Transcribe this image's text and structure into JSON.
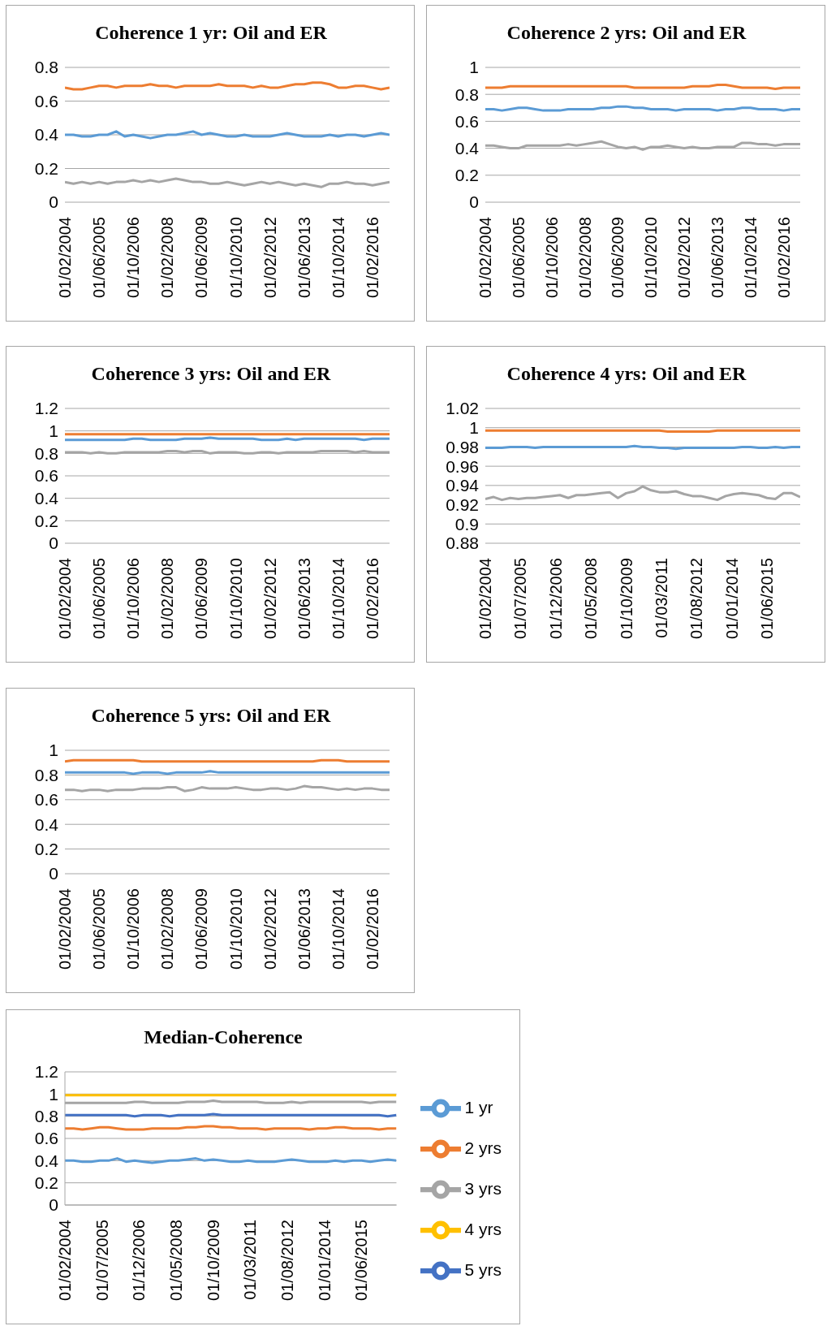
{
  "chart_data": [
    {
      "type": "line",
      "title": "Coherence 1 yr: Oil and ER",
      "grid": "y",
      "ylim": [
        0,
        0.8
      ],
      "yticks": [
        0,
        0.2,
        0.4,
        0.6,
        0.8
      ],
      "xlim": [
        "2004-02",
        "2016-10"
      ],
      "xticks": [
        {
          "value": "2004-02",
          "label": "01/02/2004"
        },
        {
          "value": "2005-06",
          "label": "01/06/2005"
        },
        {
          "value": "2006-10",
          "label": "01/10/2006"
        },
        {
          "value": "2008-02",
          "label": "01/02/2008"
        },
        {
          "value": "2009-06",
          "label": "01/06/2009"
        },
        {
          "value": "2010-10",
          "label": "01/10/2010"
        },
        {
          "value": "2012-02",
          "label": "01/02/2012"
        },
        {
          "value": "2013-06",
          "label": "01/06/2013"
        },
        {
          "value": "2014-10",
          "label": "01/10/2014"
        },
        {
          "value": "2016-02",
          "label": "01/02/2016"
        }
      ],
      "x": [
        "2004-02",
        "2004-06",
        "2004-10",
        "2005-02",
        "2005-06",
        "2005-10",
        "2006-02",
        "2006-06",
        "2006-10",
        "2007-02",
        "2007-06",
        "2007-10",
        "2008-02",
        "2008-06",
        "2008-10",
        "2009-02",
        "2009-06",
        "2009-10",
        "2010-02",
        "2010-06",
        "2010-10",
        "2011-02",
        "2011-06",
        "2011-10",
        "2012-02",
        "2012-06",
        "2012-10",
        "2013-02",
        "2013-06",
        "2013-10",
        "2014-02",
        "2014-06",
        "2014-10",
        "2015-02",
        "2015-06",
        "2015-10",
        "2016-02",
        "2016-06",
        "2016-10"
      ],
      "series": [
        {
          "color": "#5b9bd5",
          "values": [
            0.4,
            0.4,
            0.39,
            0.39,
            0.4,
            0.4,
            0.42,
            0.39,
            0.4,
            0.39,
            0.38,
            0.39,
            0.4,
            0.4,
            0.41,
            0.42,
            0.4,
            0.41,
            0.4,
            0.39,
            0.39,
            0.4,
            0.39,
            0.39,
            0.39,
            0.4,
            0.41,
            0.4,
            0.39,
            0.39,
            0.39,
            0.4,
            0.39,
            0.4,
            0.4,
            0.39,
            0.4,
            0.41,
            0.4
          ]
        },
        {
          "color": "#ed7d31",
          "values": [
            0.68,
            0.67,
            0.67,
            0.68,
            0.69,
            0.69,
            0.68,
            0.69,
            0.69,
            0.69,
            0.7,
            0.69,
            0.69,
            0.68,
            0.69,
            0.69,
            0.69,
            0.69,
            0.7,
            0.69,
            0.69,
            0.69,
            0.68,
            0.69,
            0.68,
            0.68,
            0.69,
            0.7,
            0.7,
            0.71,
            0.71,
            0.7,
            0.68,
            0.68,
            0.69,
            0.69,
            0.68,
            0.67,
            0.68
          ]
        },
        {
          "color": "#a5a5a5",
          "values": [
            0.12,
            0.11,
            0.12,
            0.11,
            0.12,
            0.11,
            0.12,
            0.12,
            0.13,
            0.12,
            0.13,
            0.12,
            0.13,
            0.14,
            0.13,
            0.12,
            0.12,
            0.11,
            0.11,
            0.12,
            0.11,
            0.1,
            0.11,
            0.12,
            0.11,
            0.12,
            0.11,
            0.1,
            0.11,
            0.1,
            0.09,
            0.11,
            0.11,
            0.12,
            0.11,
            0.11,
            0.1,
            0.11,
            0.12
          ]
        }
      ]
    },
    {
      "type": "line",
      "title": "Coherence 2 yrs: Oil and ER",
      "grid": "y",
      "ylim": [
        0,
        1
      ],
      "yticks": [
        0,
        0.2,
        0.4,
        0.6,
        0.8,
        1
      ],
      "xlim": [
        "2004-02",
        "2016-10"
      ],
      "xticks": [
        {
          "value": "2004-02",
          "label": "01/02/2004"
        },
        {
          "value": "2005-06",
          "label": "01/06/2005"
        },
        {
          "value": "2006-10",
          "label": "01/10/2006"
        },
        {
          "value": "2008-02",
          "label": "01/02/2008"
        },
        {
          "value": "2009-06",
          "label": "01/06/2009"
        },
        {
          "value": "2010-10",
          "label": "01/10/2010"
        },
        {
          "value": "2012-02",
          "label": "01/02/2012"
        },
        {
          "value": "2013-06",
          "label": "01/06/2013"
        },
        {
          "value": "2014-10",
          "label": "01/10/2014"
        },
        {
          "value": "2016-02",
          "label": "01/02/2016"
        }
      ],
      "x": [
        "2004-02",
        "2004-06",
        "2004-10",
        "2005-02",
        "2005-06",
        "2005-10",
        "2006-02",
        "2006-06",
        "2006-10",
        "2007-02",
        "2007-06",
        "2007-10",
        "2008-02",
        "2008-06",
        "2008-10",
        "2009-02",
        "2009-06",
        "2009-10",
        "2010-02",
        "2010-06",
        "2010-10",
        "2011-02",
        "2011-06",
        "2011-10",
        "2012-02",
        "2012-06",
        "2012-10",
        "2013-02",
        "2013-06",
        "2013-10",
        "2014-02",
        "2014-06",
        "2014-10",
        "2015-02",
        "2015-06",
        "2015-10",
        "2016-02",
        "2016-06",
        "2016-10"
      ],
      "series": [
        {
          "color": "#5b9bd5",
          "values": [
            0.69,
            0.69,
            0.68,
            0.69,
            0.7,
            0.7,
            0.69,
            0.68,
            0.68,
            0.68,
            0.69,
            0.69,
            0.69,
            0.69,
            0.7,
            0.7,
            0.71,
            0.71,
            0.7,
            0.7,
            0.69,
            0.69,
            0.69,
            0.68,
            0.69,
            0.69,
            0.69,
            0.69,
            0.68,
            0.69,
            0.69,
            0.7,
            0.7,
            0.69,
            0.69,
            0.69,
            0.68,
            0.69,
            0.69
          ]
        },
        {
          "color": "#ed7d31",
          "values": [
            0.85,
            0.85,
            0.85,
            0.86,
            0.86,
            0.86,
            0.86,
            0.86,
            0.86,
            0.86,
            0.86,
            0.86,
            0.86,
            0.86,
            0.86,
            0.86,
            0.86,
            0.86,
            0.85,
            0.85,
            0.85,
            0.85,
            0.85,
            0.85,
            0.85,
            0.86,
            0.86,
            0.86,
            0.87,
            0.87,
            0.86,
            0.85,
            0.85,
            0.85,
            0.85,
            0.84,
            0.85,
            0.85,
            0.85
          ]
        },
        {
          "color": "#a5a5a5",
          "values": [
            0.42,
            0.42,
            0.41,
            0.4,
            0.4,
            0.42,
            0.42,
            0.42,
            0.42,
            0.42,
            0.43,
            0.42,
            0.43,
            0.44,
            0.45,
            0.43,
            0.41,
            0.4,
            0.41,
            0.39,
            0.41,
            0.41,
            0.42,
            0.41,
            0.4,
            0.41,
            0.4,
            0.4,
            0.41,
            0.41,
            0.41,
            0.44,
            0.44,
            0.43,
            0.43,
            0.42,
            0.43,
            0.43,
            0.43
          ]
        }
      ]
    },
    {
      "type": "line",
      "title": "Coherence 3 yrs: Oil and ER",
      "grid": "y",
      "ylim": [
        0,
        1.2
      ],
      "yticks": [
        0,
        0.2,
        0.4,
        0.6,
        0.8,
        1,
        1.2
      ],
      "xlim": [
        "2004-02",
        "2016-10"
      ],
      "xticks": [
        {
          "value": "2004-02",
          "label": "01/02/2004"
        },
        {
          "value": "2005-06",
          "label": "01/06/2005"
        },
        {
          "value": "2006-10",
          "label": "01/10/2006"
        },
        {
          "value": "2008-02",
          "label": "01/02/2008"
        },
        {
          "value": "2009-06",
          "label": "01/06/2009"
        },
        {
          "value": "2010-10",
          "label": "01/10/2010"
        },
        {
          "value": "2012-02",
          "label": "01/02/2012"
        },
        {
          "value": "2013-06",
          "label": "01/06/2013"
        },
        {
          "value": "2014-10",
          "label": "01/10/2014"
        },
        {
          "value": "2016-02",
          "label": "01/02/2016"
        }
      ],
      "x": [
        "2004-02",
        "2004-06",
        "2004-10",
        "2005-02",
        "2005-06",
        "2005-10",
        "2006-02",
        "2006-06",
        "2006-10",
        "2007-02",
        "2007-06",
        "2007-10",
        "2008-02",
        "2008-06",
        "2008-10",
        "2009-02",
        "2009-06",
        "2009-10",
        "2010-02",
        "2010-06",
        "2010-10",
        "2011-02",
        "2011-06",
        "2011-10",
        "2012-02",
        "2012-06",
        "2012-10",
        "2013-02",
        "2013-06",
        "2013-10",
        "2014-02",
        "2014-06",
        "2014-10",
        "2015-02",
        "2015-06",
        "2015-10",
        "2016-02",
        "2016-06",
        "2016-10"
      ],
      "series": [
        {
          "color": "#5b9bd5",
          "values": [
            0.92,
            0.92,
            0.92,
            0.92,
            0.92,
            0.92,
            0.92,
            0.92,
            0.93,
            0.93,
            0.92,
            0.92,
            0.92,
            0.92,
            0.93,
            0.93,
            0.93,
            0.94,
            0.93,
            0.93,
            0.93,
            0.93,
            0.93,
            0.92,
            0.92,
            0.92,
            0.93,
            0.92,
            0.93,
            0.93,
            0.93,
            0.93,
            0.93,
            0.93,
            0.93,
            0.92,
            0.93,
            0.93,
            0.93
          ]
        },
        {
          "color": "#ed7d31",
          "values": [
            0.97,
            0.97,
            0.97,
            0.97,
            0.97,
            0.97,
            0.97,
            0.97,
            0.97,
            0.97,
            0.97,
            0.97,
            0.97,
            0.97,
            0.97,
            0.97,
            0.97,
            0.97,
            0.97,
            0.97,
            0.97,
            0.97,
            0.97,
            0.97,
            0.97,
            0.97,
            0.97,
            0.97,
            0.97,
            0.97,
            0.97,
            0.97,
            0.97,
            0.97,
            0.97,
            0.97,
            0.97,
            0.97,
            0.97
          ]
        },
        {
          "color": "#a5a5a5",
          "values": [
            0.81,
            0.81,
            0.81,
            0.8,
            0.81,
            0.8,
            0.8,
            0.81,
            0.81,
            0.81,
            0.81,
            0.81,
            0.82,
            0.82,
            0.81,
            0.82,
            0.82,
            0.8,
            0.81,
            0.81,
            0.81,
            0.8,
            0.8,
            0.81,
            0.81,
            0.8,
            0.81,
            0.81,
            0.81,
            0.81,
            0.82,
            0.82,
            0.82,
            0.82,
            0.81,
            0.82,
            0.81,
            0.81,
            0.81
          ]
        }
      ]
    },
    {
      "type": "line",
      "title": "Coherence 4 yrs: Oil and ER",
      "grid": "y",
      "ylim": [
        0.88,
        1.02
      ],
      "yticks": [
        0.88,
        0.9,
        0.92,
        0.94,
        0.96,
        0.98,
        1,
        1.02
      ],
      "xlim": [
        "2004-02",
        "2016-10"
      ],
      "xticks": [
        {
          "value": "2004-02",
          "label": "01/02/2004"
        },
        {
          "value": "2005-07",
          "label": "01/07/2005"
        },
        {
          "value": "2006-12",
          "label": "01/12/2006"
        },
        {
          "value": "2008-05",
          "label": "01/05/2008"
        },
        {
          "value": "2009-10",
          "label": "01/10/2009"
        },
        {
          "value": "2011-03",
          "label": "01/03/2011"
        },
        {
          "value": "2012-08",
          "label": "01/08/2012"
        },
        {
          "value": "2014-01",
          "label": "01/01/2014"
        },
        {
          "value": "2015-06",
          "label": "01/06/2015"
        }
      ],
      "x": [
        "2004-02",
        "2004-06",
        "2004-10",
        "2005-02",
        "2005-06",
        "2005-10",
        "2006-02",
        "2006-06",
        "2006-10",
        "2007-02",
        "2007-06",
        "2007-10",
        "2008-02",
        "2008-06",
        "2008-10",
        "2009-02",
        "2009-06",
        "2009-10",
        "2010-02",
        "2010-06",
        "2010-10",
        "2011-02",
        "2011-06",
        "2011-10",
        "2012-02",
        "2012-06",
        "2012-10",
        "2013-02",
        "2013-06",
        "2013-10",
        "2014-02",
        "2014-06",
        "2014-10",
        "2015-02",
        "2015-06",
        "2015-10",
        "2016-02",
        "2016-06",
        "2016-10"
      ],
      "series": [
        {
          "color": "#5b9bd5",
          "values": [
            0.979,
            0.979,
            0.979,
            0.98,
            0.98,
            0.98,
            0.979,
            0.98,
            0.98,
            0.98,
            0.98,
            0.98,
            0.98,
            0.98,
            0.98,
            0.98,
            0.98,
            0.98,
            0.981,
            0.98,
            0.98,
            0.979,
            0.979,
            0.978,
            0.979,
            0.979,
            0.979,
            0.979,
            0.979,
            0.979,
            0.979,
            0.98,
            0.98,
            0.979,
            0.979,
            0.98,
            0.979,
            0.98,
            0.98
          ]
        },
        {
          "color": "#ed7d31",
          "values": [
            0.997,
            0.997,
            0.997,
            0.997,
            0.997,
            0.997,
            0.997,
            0.997,
            0.997,
            0.997,
            0.997,
            0.997,
            0.997,
            0.997,
            0.997,
            0.997,
            0.997,
            0.997,
            0.997,
            0.997,
            0.997,
            0.997,
            0.996,
            0.996,
            0.996,
            0.996,
            0.996,
            0.996,
            0.997,
            0.997,
            0.997,
            0.997,
            0.997,
            0.997,
            0.997,
            0.997,
            0.997,
            0.997,
            0.997
          ]
        },
        {
          "color": "#a5a5a5",
          "values": [
            0.926,
            0.928,
            0.925,
            0.927,
            0.926,
            0.927,
            0.927,
            0.928,
            0.929,
            0.93,
            0.927,
            0.93,
            0.93,
            0.931,
            0.932,
            0.933,
            0.927,
            0.932,
            0.934,
            0.939,
            0.935,
            0.933,
            0.933,
            0.934,
            0.931,
            0.929,
            0.929,
            0.927,
            0.925,
            0.929,
            0.931,
            0.932,
            0.931,
            0.93,
            0.927,
            0.926,
            0.932,
            0.932,
            0.928
          ]
        }
      ]
    },
    {
      "type": "line",
      "title": "Coherence 5 yrs: Oil and ER",
      "grid": "y",
      "ylim": [
        0,
        1
      ],
      "yticks": [
        0,
        0.2,
        0.4,
        0.6,
        0.8,
        1
      ],
      "xlim": [
        "2004-02",
        "2016-10"
      ],
      "xticks": [
        {
          "value": "2004-02",
          "label": "01/02/2004"
        },
        {
          "value": "2005-06",
          "label": "01/06/2005"
        },
        {
          "value": "2006-10",
          "label": "01/10/2006"
        },
        {
          "value": "2008-02",
          "label": "01/02/2008"
        },
        {
          "value": "2009-06",
          "label": "01/06/2009"
        },
        {
          "value": "2010-10",
          "label": "01/10/2010"
        },
        {
          "value": "2012-02",
          "label": "01/02/2012"
        },
        {
          "value": "2013-06",
          "label": "01/06/2013"
        },
        {
          "value": "2014-10",
          "label": "01/10/2014"
        },
        {
          "value": "2016-02",
          "label": "01/02/2016"
        }
      ],
      "x": [
        "2004-02",
        "2004-06",
        "2004-10",
        "2005-02",
        "2005-06",
        "2005-10",
        "2006-02",
        "2006-06",
        "2006-10",
        "2007-02",
        "2007-06",
        "2007-10",
        "2008-02",
        "2008-06",
        "2008-10",
        "2009-02",
        "2009-06",
        "2009-10",
        "2010-02",
        "2010-06",
        "2010-10",
        "2011-02",
        "2011-06",
        "2011-10",
        "2012-02",
        "2012-06",
        "2012-10",
        "2013-02",
        "2013-06",
        "2013-10",
        "2014-02",
        "2014-06",
        "2014-10",
        "2015-02",
        "2015-06",
        "2015-10",
        "2016-02",
        "2016-06",
        "2016-10"
      ],
      "series": [
        {
          "color": "#5b9bd5",
          "values": [
            0.82,
            0.82,
            0.82,
            0.82,
            0.82,
            0.82,
            0.82,
            0.82,
            0.81,
            0.82,
            0.82,
            0.82,
            0.81,
            0.82,
            0.82,
            0.82,
            0.82,
            0.83,
            0.82,
            0.82,
            0.82,
            0.82,
            0.82,
            0.82,
            0.82,
            0.82,
            0.82,
            0.82,
            0.82,
            0.82,
            0.82,
            0.82,
            0.82,
            0.82,
            0.82,
            0.82,
            0.82,
            0.82,
            0.82
          ]
        },
        {
          "color": "#ed7d31",
          "values": [
            0.91,
            0.92,
            0.92,
            0.92,
            0.92,
            0.92,
            0.92,
            0.92,
            0.92,
            0.91,
            0.91,
            0.91,
            0.91,
            0.91,
            0.91,
            0.91,
            0.91,
            0.91,
            0.91,
            0.91,
            0.91,
            0.91,
            0.91,
            0.91,
            0.91,
            0.91,
            0.91,
            0.91,
            0.91,
            0.91,
            0.92,
            0.92,
            0.92,
            0.91,
            0.91,
            0.91,
            0.91,
            0.91,
            0.91
          ]
        },
        {
          "color": "#a5a5a5",
          "values": [
            0.68,
            0.68,
            0.67,
            0.68,
            0.68,
            0.67,
            0.68,
            0.68,
            0.68,
            0.69,
            0.69,
            0.69,
            0.7,
            0.7,
            0.67,
            0.68,
            0.7,
            0.69,
            0.69,
            0.69,
            0.7,
            0.69,
            0.68,
            0.68,
            0.69,
            0.69,
            0.68,
            0.69,
            0.71,
            0.7,
            0.7,
            0.69,
            0.68,
            0.69,
            0.68,
            0.69,
            0.69,
            0.68,
            0.68
          ]
        }
      ]
    },
    {
      "type": "line",
      "title": "Median-Coherence",
      "grid": "y",
      "legend": "right",
      "ylim": [
        0,
        1.2
      ],
      "yticks": [
        0,
        0.2,
        0.4,
        0.6,
        0.8,
        1,
        1.2
      ],
      "xlim": [
        "2004-02",
        "2016-10"
      ],
      "xticks": [
        {
          "value": "2004-02",
          "label": "01/02/2004"
        },
        {
          "value": "2005-07",
          "label": "01/07/2005"
        },
        {
          "value": "2006-12",
          "label": "01/12/2006"
        },
        {
          "value": "2008-05",
          "label": "01/05/2008"
        },
        {
          "value": "2009-10",
          "label": "01/10/2009"
        },
        {
          "value": "2011-03",
          "label": "01/03/2011"
        },
        {
          "value": "2012-08",
          "label": "01/08/2012"
        },
        {
          "value": "2014-01",
          "label": "01/01/2014"
        },
        {
          "value": "2015-06",
          "label": "01/06/2015"
        }
      ],
      "x": [
        "2004-02",
        "2004-06",
        "2004-10",
        "2005-02",
        "2005-06",
        "2005-10",
        "2006-02",
        "2006-06",
        "2006-10",
        "2007-02",
        "2007-06",
        "2007-10",
        "2008-02",
        "2008-06",
        "2008-10",
        "2009-02",
        "2009-06",
        "2009-10",
        "2010-02",
        "2010-06",
        "2010-10",
        "2011-02",
        "2011-06",
        "2011-10",
        "2012-02",
        "2012-06",
        "2012-10",
        "2013-02",
        "2013-06",
        "2013-10",
        "2014-02",
        "2014-06",
        "2014-10",
        "2015-02",
        "2015-06",
        "2015-10",
        "2016-02",
        "2016-06",
        "2016-10"
      ],
      "series": [
        {
          "name": "1 yr",
          "color": "#5b9bd5",
          "values": [
            0.4,
            0.4,
            0.39,
            0.39,
            0.4,
            0.4,
            0.42,
            0.39,
            0.4,
            0.39,
            0.38,
            0.39,
            0.4,
            0.4,
            0.41,
            0.42,
            0.4,
            0.41,
            0.4,
            0.39,
            0.39,
            0.4,
            0.39,
            0.39,
            0.39,
            0.4,
            0.41,
            0.4,
            0.39,
            0.39,
            0.39,
            0.4,
            0.39,
            0.4,
            0.4,
            0.39,
            0.4,
            0.41,
            0.4
          ]
        },
        {
          "name": "2 yrs",
          "color": "#ed7d31",
          "values": [
            0.69,
            0.69,
            0.68,
            0.69,
            0.7,
            0.7,
            0.69,
            0.68,
            0.68,
            0.68,
            0.69,
            0.69,
            0.69,
            0.69,
            0.7,
            0.7,
            0.71,
            0.71,
            0.7,
            0.7,
            0.69,
            0.69,
            0.69,
            0.68,
            0.69,
            0.69,
            0.69,
            0.69,
            0.68,
            0.69,
            0.69,
            0.7,
            0.7,
            0.69,
            0.69,
            0.69,
            0.68,
            0.69,
            0.69
          ]
        },
        {
          "name": "3 yrs",
          "color": "#a5a5a5",
          "values": [
            0.92,
            0.92,
            0.92,
            0.92,
            0.92,
            0.92,
            0.92,
            0.92,
            0.93,
            0.93,
            0.92,
            0.92,
            0.92,
            0.92,
            0.93,
            0.93,
            0.93,
            0.94,
            0.93,
            0.93,
            0.93,
            0.93,
            0.93,
            0.92,
            0.92,
            0.92,
            0.93,
            0.92,
            0.93,
            0.93,
            0.93,
            0.93,
            0.93,
            0.93,
            0.93,
            0.92,
            0.93,
            0.93,
            0.93
          ]
        },
        {
          "name": "4 yrs",
          "color": "#ffc000",
          "values": [
            0.99,
            0.99,
            0.99,
            0.99,
            0.99,
            0.99,
            0.99,
            0.99,
            0.99,
            0.99,
            0.99,
            0.99,
            0.99,
            0.99,
            0.99,
            0.99,
            0.99,
            0.99,
            0.99,
            0.99,
            0.99,
            0.99,
            0.99,
            0.99,
            0.99,
            0.99,
            0.99,
            0.99,
            0.99,
            0.99,
            0.99,
            0.99,
            0.99,
            0.99,
            0.99,
            0.99,
            0.99,
            0.99,
            0.99
          ]
        },
        {
          "name": "5 yrs",
          "color": "#4472c4",
          "values": [
            0.81,
            0.81,
            0.81,
            0.81,
            0.81,
            0.81,
            0.81,
            0.81,
            0.8,
            0.81,
            0.81,
            0.81,
            0.8,
            0.81,
            0.81,
            0.81,
            0.81,
            0.82,
            0.81,
            0.81,
            0.81,
            0.81,
            0.81,
            0.81,
            0.81,
            0.81,
            0.81,
            0.81,
            0.81,
            0.81,
            0.81,
            0.81,
            0.81,
            0.81,
            0.81,
            0.81,
            0.81,
            0.8,
            0.81
          ]
        }
      ]
    }
  ]
}
